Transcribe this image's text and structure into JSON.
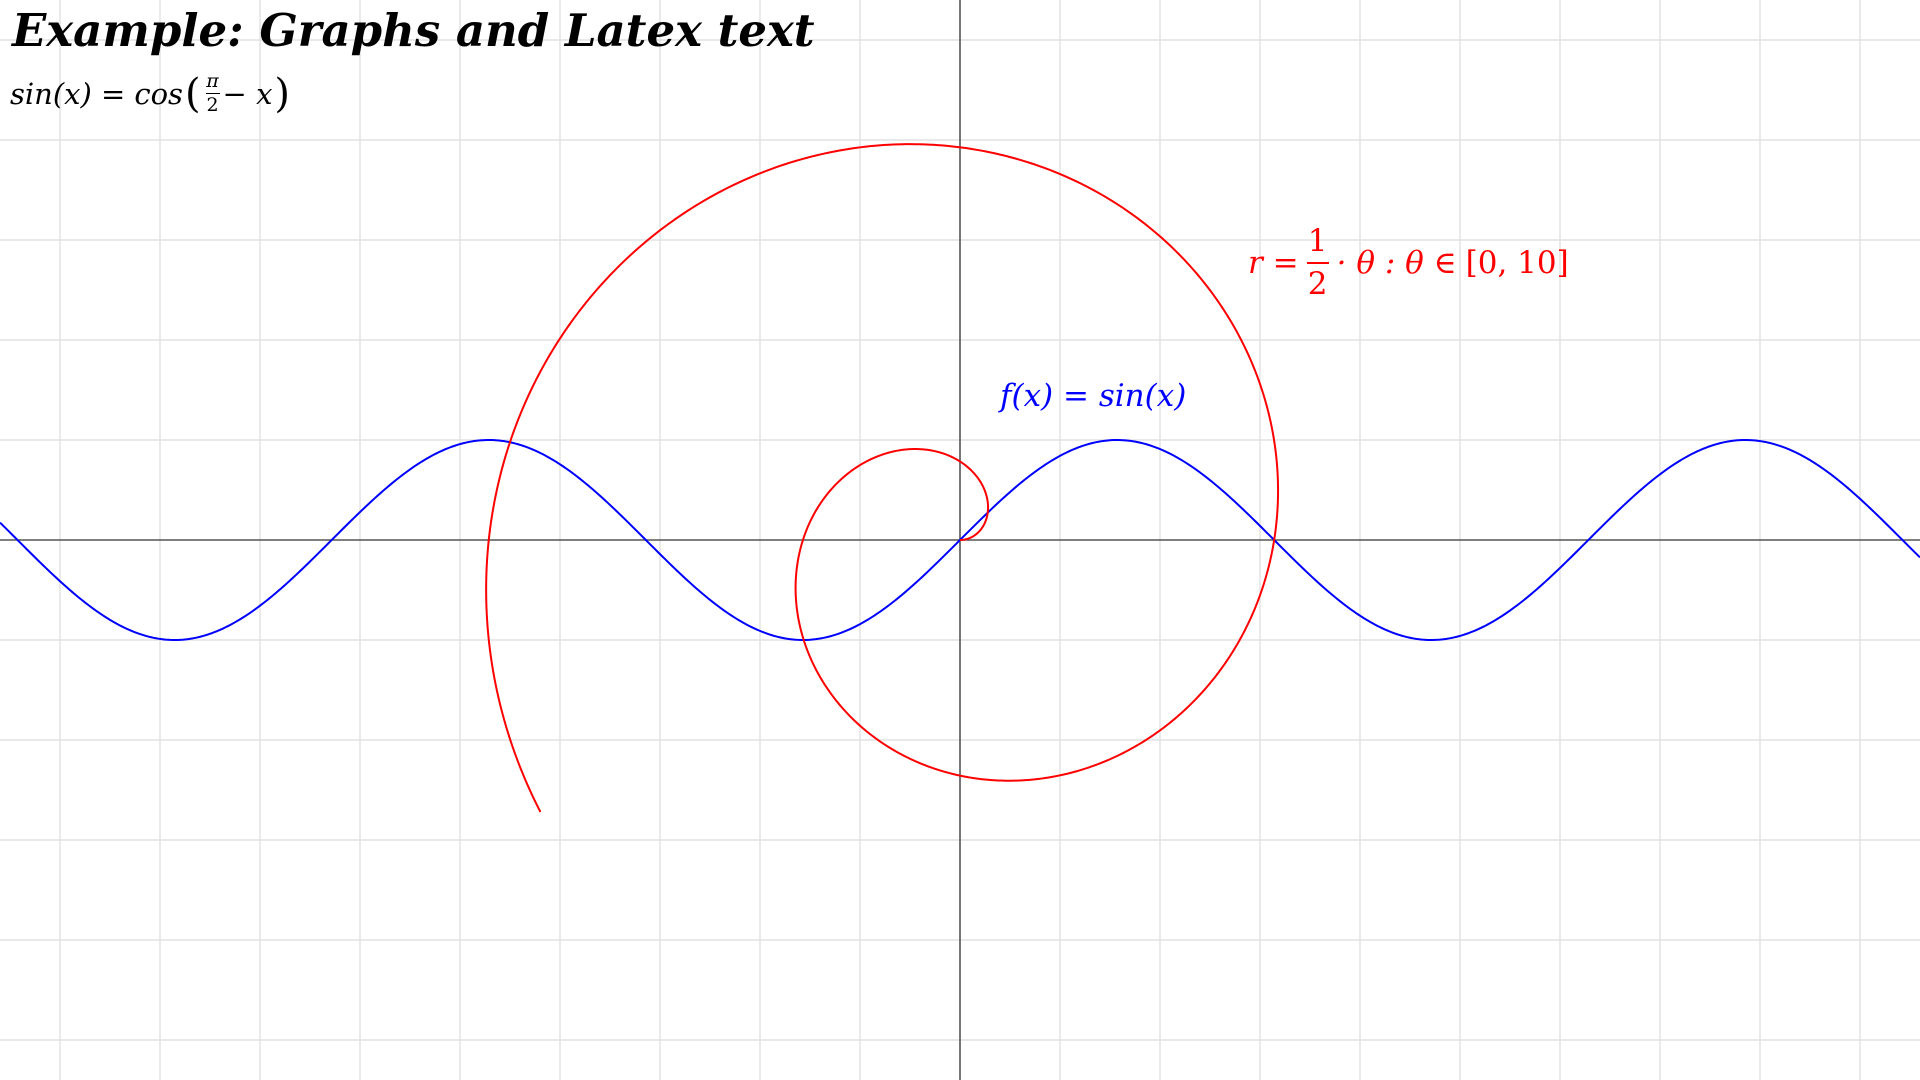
{
  "title": "Example: Graphs and Latex text",
  "identity": {
    "lhs": "sin(x) =",
    "fn": "cos",
    "frac_num": "π",
    "frac_den": "2",
    "rest": "− x"
  },
  "chart_data": {
    "type": "line",
    "title": "Example: Graphs and Latex text",
    "xlim": [
      -9.6,
      9.6
    ],
    "ylim": [
      -5.4,
      5.4
    ],
    "grid": true,
    "grid_step": 1,
    "axes_colors": {
      "axis": "#555555",
      "grid": "#e2e2e2"
    },
    "series": [
      {
        "name": "f(x) = sin(x)",
        "kind": "function",
        "expression": "sin(x)",
        "domain": [
          -9.6,
          9.6
        ],
        "color": "#0000ff",
        "x": [
          -9.6,
          -7.854,
          -6.283,
          -4.712,
          -3.142,
          -1.571,
          0,
          1.571,
          3.142,
          4.712,
          6.283,
          7.854,
          9.6
        ],
        "y": [
          0.175,
          -1,
          0,
          1,
          0,
          -1,
          0,
          1,
          0,
          -1,
          0,
          1,
          -0.175
        ]
      },
      {
        "name": "r = 1/2 · θ : θ ∈ [0, 10]",
        "kind": "polar",
        "expression": "r = 0.5 * θ",
        "theta_range": [
          0,
          10
        ],
        "color": "#ff0000"
      }
    ],
    "annotations": {
      "sine": {
        "lhs": "f(x) = sin(x)"
      },
      "spiral": {
        "lhs": "r =",
        "num": "1",
        "den": "2",
        "rest_a": "· θ : θ ∈",
        "interval": "[0, 10]"
      }
    }
  }
}
